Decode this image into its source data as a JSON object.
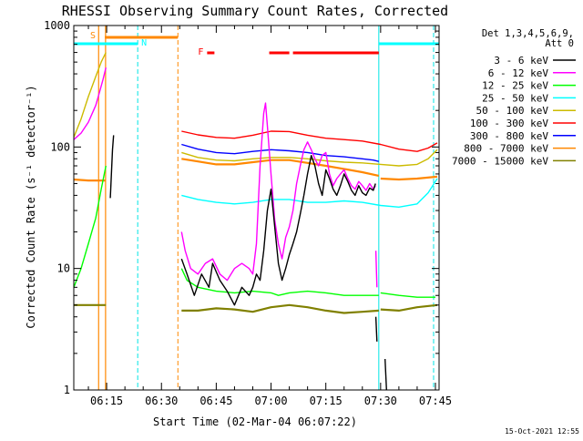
{
  "chart_data": {
    "type": "line",
    "title": "RHESSI Observing Summary Count Rates, Corrected",
    "xlabel": "Start Time (02-Mar-04 06:07:22)",
    "ylabel": "Corrected Count Rate (s⁻¹ detector⁻¹)",
    "yscale": "log",
    "ylim": [
      1,
      1000
    ],
    "xlim_minutes": [
      6.0,
      106.0
    ],
    "x_ticks": [
      {
        "m": 15,
        "label": "06:15"
      },
      {
        "m": 30,
        "label": "06:30"
      },
      {
        "m": 45,
        "label": "06:45"
      },
      {
        "m": 60,
        "label": "07:00"
      },
      {
        "m": 75,
        "label": "07:15"
      },
      {
        "m": 90,
        "label": "07:30"
      },
      {
        "m": 105,
        "label": "07:45"
      }
    ],
    "y_ticks": [
      {
        "v": 1,
        "label": "1"
      },
      {
        "v": 10,
        "label": "10"
      },
      {
        "v": 100,
        "label": "100"
      },
      {
        "v": 1000,
        "label": "1000"
      }
    ],
    "legend_header": [
      "Det 1,3,4,5,6,9,",
      "Att 0"
    ],
    "legend_placement": "right",
    "footer_date": "15-Oct-2021 12:55",
    "markers": {
      "S": "S",
      "N": "N",
      "F": "F"
    },
    "cyan_dashed_x": [
      6.0,
      23.5,
      89.5,
      104.5
    ],
    "orange_dashed_x": [
      34.5
    ],
    "red_flare_bar": [
      [
        42.5,
        44.5
      ],
      [
        59.5,
        65.0
      ],
      [
        66.0,
        89.5
      ]
    ],
    "series": [
      {
        "name": "3 - 6 keV",
        "color": "#000000",
        "segments": [
          [
            [
              16,
              38
            ],
            [
              16.3,
              60
            ],
            [
              16.6,
              95
            ],
            [
              16.9,
              125
            ]
          ],
          [
            [
              35.5,
              12
            ],
            [
              37,
              9
            ],
            [
              39,
              6
            ],
            [
              41,
              9
            ],
            [
              43,
              7
            ],
            [
              44,
              11
            ],
            [
              46,
              8
            ],
            [
              48,
              6.5
            ],
            [
              50,
              5
            ],
            [
              52,
              7
            ],
            [
              54,
              6
            ],
            [
              55,
              7
            ],
            [
              56,
              9
            ],
            [
              57,
              8
            ],
            [
              58,
              14
            ],
            [
              59,
              30
            ],
            [
              60,
              45
            ],
            [
              61,
              22
            ],
            [
              62,
              11
            ],
            [
              63,
              8
            ],
            [
              64,
              10
            ],
            [
              65,
              13
            ],
            [
              66,
              16
            ],
            [
              67,
              20
            ],
            [
              68,
              28
            ],
            [
              69,
              40
            ],
            [
              70,
              60
            ],
            [
              71,
              85
            ],
            [
              72,
              70
            ],
            [
              73,
              50
            ],
            [
              74,
              40
            ],
            [
              75,
              65
            ],
            [
              76,
              55
            ],
            [
              77,
              45
            ],
            [
              78,
              40
            ],
            [
              79,
              48
            ],
            [
              80,
              60
            ],
            [
              81,
              52
            ],
            [
              82,
              44
            ],
            [
              83,
              40
            ],
            [
              84,
              48
            ],
            [
              85,
              42
            ],
            [
              86,
              40
            ],
            [
              87,
              46
            ],
            [
              88,
              44
            ],
            [
              88.6,
              50
            ]
          ],
          [
            [
              88.7,
              4
            ],
            [
              89,
              2.5
            ]
          ],
          [
            [
              91.2,
              1.8
            ],
            [
              91.6,
              1.0
            ]
          ]
        ]
      },
      {
        "name": "6 - 12 keV",
        "color": "#ff00ff",
        "segments": [
          [
            [
              6,
              115
            ],
            [
              8,
              130
            ],
            [
              10,
              160
            ],
            [
              12,
              220
            ],
            [
              13,
              280
            ],
            [
              14,
              360
            ],
            [
              14.8,
              450
            ]
          ],
          [
            [
              35.5,
              20
            ],
            [
              36.5,
              14
            ],
            [
              38,
              10
            ],
            [
              40,
              9
            ],
            [
              42,
              11
            ],
            [
              44,
              12
            ],
            [
              46,
              9
            ],
            [
              48,
              8
            ],
            [
              50,
              10
            ],
            [
              52,
              11
            ],
            [
              54,
              10
            ],
            [
              55,
              9
            ],
            [
              56,
              16
            ],
            [
              57,
              70
            ],
            [
              58,
              190
            ],
            [
              58.5,
              230
            ],
            [
              59,
              150
            ],
            [
              60,
              60
            ],
            [
              61,
              25
            ],
            [
              62,
              16
            ],
            [
              63,
              12
            ],
            [
              64,
              18
            ],
            [
              65,
              22
            ],
            [
              66,
              30
            ],
            [
              67,
              50
            ],
            [
              68,
              70
            ],
            [
              69,
              95
            ],
            [
              70,
              110
            ],
            [
              71,
              95
            ],
            [
              72,
              80
            ],
            [
              73,
              70
            ],
            [
              74,
              85
            ],
            [
              75,
              90
            ],
            [
              76,
              60
            ],
            [
              77,
              48
            ],
            [
              78,
              55
            ],
            [
              79,
              60
            ],
            [
              80,
              65
            ],
            [
              81,
              55
            ],
            [
              82,
              48
            ],
            [
              83,
              45
            ],
            [
              84,
              52
            ],
            [
              85,
              48
            ],
            [
              86,
              44
            ],
            [
              87,
              50
            ],
            [
              88,
              45
            ],
            [
              88.6,
              48
            ]
          ],
          [
            [
              88.7,
              14
            ],
            [
              89,
              7
            ]
          ]
        ]
      },
      {
        "name": "12 - 25 keV",
        "color": "#00ff00",
        "segments": [
          [
            [
              6,
              7
            ],
            [
              8,
              10
            ],
            [
              10,
              16
            ],
            [
              12,
              26
            ],
            [
              13.5,
              45
            ],
            [
              14.8,
              70
            ]
          ],
          [
            [
              35.5,
              10
            ],
            [
              37,
              8
            ],
            [
              40,
              7
            ],
            [
              45,
              6.5
            ],
            [
              50,
              6.3
            ],
            [
              55,
              6.5
            ],
            [
              60,
              6.3
            ],
            [
              62,
              6
            ],
            [
              65,
              6.3
            ],
            [
              70,
              6.5
            ],
            [
              75,
              6.3
            ],
            [
              80,
              6
            ],
            [
              85,
              6
            ],
            [
              89.5,
              6
            ]
          ],
          [
            [
              90,
              6.3
            ],
            [
              95,
              6
            ],
            [
              100,
              5.8
            ],
            [
              105,
              5.8
            ]
          ]
        ]
      },
      {
        "name": "25 - 50 keV",
        "color": "#00ffff",
        "segments": [
          [
            [
              35.5,
              40
            ],
            [
              40,
              37
            ],
            [
              45,
              35
            ],
            [
              50,
              34
            ],
            [
              55,
              35
            ],
            [
              60,
              37
            ],
            [
              65,
              37
            ],
            [
              70,
              35
            ],
            [
              75,
              35
            ],
            [
              80,
              36
            ],
            [
              85,
              35
            ],
            [
              90,
              33
            ],
            [
              95,
              32
            ],
            [
              100,
              34
            ],
            [
              103,
              42
            ],
            [
              105.5,
              55
            ]
          ]
        ]
      },
      {
        "name": "50 - 100 keV",
        "color": "#ccbb00",
        "segments": [
          [
            [
              6,
              120
            ],
            [
              8,
              170
            ],
            [
              10,
              260
            ],
            [
              12,
              380
            ],
            [
              13.5,
              500
            ],
            [
              14.8,
              600
            ]
          ],
          [
            [
              35.5,
              90
            ],
            [
              40,
              82
            ],
            [
              45,
              78
            ],
            [
              50,
              77
            ],
            [
              55,
              80
            ],
            [
              60,
              82
            ],
            [
              65,
              82
            ],
            [
              70,
              80
            ],
            [
              75,
              77
            ],
            [
              80,
              75
            ],
            [
              85,
              74
            ],
            [
              90,
              72
            ],
            [
              95,
              70
            ],
            [
              100,
              72
            ],
            [
              103,
              80
            ],
            [
              105.5,
              95
            ]
          ]
        ]
      },
      {
        "name": "100 - 300 keV",
        "color": "#ff0000",
        "segments": [
          [
            [
              35.5,
              135
            ],
            [
              40,
              126
            ],
            [
              45,
              120
            ],
            [
              50,
              118
            ],
            [
              55,
              125
            ],
            [
              60,
              135
            ],
            [
              65,
              134
            ],
            [
              70,
              125
            ],
            [
              75,
              118
            ],
            [
              80,
              115
            ],
            [
              85,
              112
            ],
            [
              90,
              105
            ],
            [
              95,
              96
            ],
            [
              100,
              92
            ],
            [
              103,
              98
            ],
            [
              105.5,
              108
            ]
          ]
        ]
      },
      {
        "name": "300 - 800 keV",
        "color": "#0000ff",
        "segments": [
          [
            [
              35.5,
              105
            ],
            [
              40,
              96
            ],
            [
              45,
              90
            ],
            [
              50,
              88
            ],
            [
              55,
              92
            ],
            [
              60,
              95
            ],
            [
              65,
              93
            ],
            [
              70,
              90
            ],
            [
              75,
              85
            ],
            [
              80,
              83
            ],
            [
              85,
              80
            ],
            [
              88,
              78
            ],
            [
              89.5,
              76
            ]
          ]
        ]
      },
      {
        "name": "800 - 7000 keV",
        "color": "#ff8800",
        "segments": [
          [
            [
              6,
              54
            ],
            [
              10,
              53
            ],
            [
              14.8,
              53
            ]
          ],
          [
            [
              35.5,
              80
            ],
            [
              40,
              76
            ],
            [
              45,
              72
            ],
            [
              50,
              72
            ],
            [
              55,
              75
            ],
            [
              60,
              78
            ],
            [
              65,
              78
            ],
            [
              70,
              74
            ],
            [
              75,
              70
            ],
            [
              80,
              66
            ],
            [
              85,
              62
            ],
            [
              89.5,
              58
            ]
          ],
          [
            [
              90,
              55
            ],
            [
              95,
              54
            ],
            [
              100,
              55
            ],
            [
              105.5,
              57
            ]
          ]
        ]
      },
      {
        "name": "7000 - 15000 keV",
        "color": "#808000",
        "segments": [
          [
            [
              6,
              5
            ],
            [
              10,
              5
            ],
            [
              14.8,
              5
            ]
          ],
          [
            [
              35.5,
              4.5
            ],
            [
              40,
              4.5
            ],
            [
              45,
              4.7
            ],
            [
              50,
              4.6
            ],
            [
              55,
              4.4
            ],
            [
              60,
              4.8
            ],
            [
              65,
              5
            ],
            [
              70,
              4.8
            ],
            [
              75,
              4.5
            ],
            [
              80,
              4.3
            ],
            [
              85,
              4.4
            ],
            [
              89.5,
              4.5
            ]
          ],
          [
            [
              90,
              4.6
            ],
            [
              95,
              4.5
            ],
            [
              100,
              4.8
            ],
            [
              105.5,
              5
            ]
          ]
        ]
      }
    ]
  }
}
